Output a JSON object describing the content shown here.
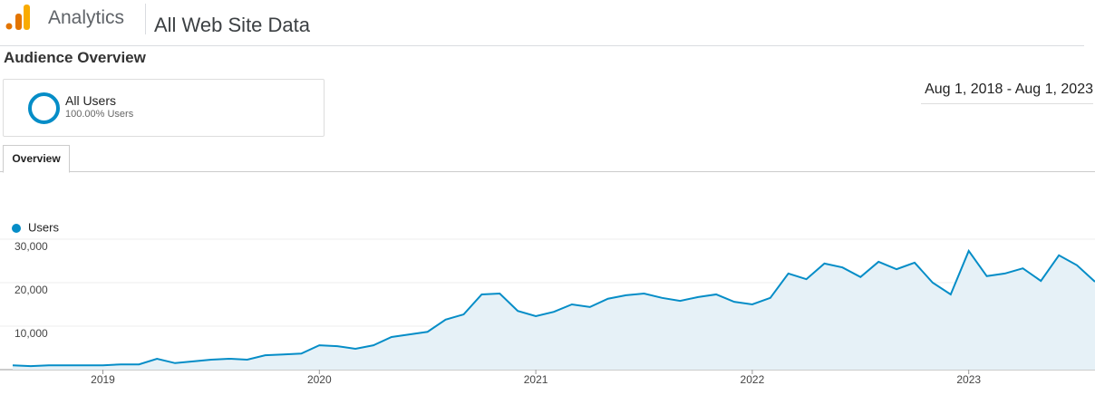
{
  "header": {
    "product": "Analytics",
    "view": "All Web Site Data"
  },
  "page_title": "Audience Overview",
  "segment": {
    "name": "All Users",
    "detail": "100.00% Users"
  },
  "date_range": "Aug 1, 2018 - Aug 1, 2023",
  "tabs": [
    "Overview"
  ],
  "chart_data": {
    "type": "line",
    "categories": [
      null,
      null,
      null,
      null,
      null,
      "2019",
      null,
      null,
      null,
      null,
      null,
      null,
      null,
      null,
      null,
      null,
      null,
      "2020",
      null,
      null,
      null,
      null,
      null,
      null,
      null,
      null,
      null,
      null,
      null,
      "2021",
      null,
      null,
      null,
      null,
      null,
      null,
      null,
      null,
      null,
      null,
      null,
      "2022",
      null,
      null,
      null,
      null,
      null,
      null,
      null,
      null,
      null,
      null,
      null,
      "2023",
      null,
      null,
      null,
      null,
      null,
      null,
      null
    ],
    "series": [
      {
        "name": "Users",
        "color": "#058dc7",
        "values": [
          1000,
          800,
          1000,
          1000,
          1000,
          1000,
          1200,
          1200,
          2500,
          1500,
          1900,
          2300,
          2500,
          2300,
          3300,
          3500,
          3700,
          5600,
          5400,
          4800,
          5600,
          7500,
          8100,
          8700,
          11500,
          12700,
          17300,
          17500,
          13500,
          12300,
          13300,
          15000,
          14400,
          16300,
          17100,
          17500,
          16500,
          15800,
          16700,
          17300,
          15600,
          15000,
          16500,
          22100,
          20800,
          24400,
          23500,
          21300,
          24800,
          23100,
          24600,
          20000,
          17300,
          27300,
          21500,
          22100,
          23300,
          20400,
          26300,
          24000,
          20200
        ]
      }
    ],
    "ylim": [
      0,
      30000
    ],
    "yticks": [
      {
        "value": 10000,
        "label": "10,000"
      },
      {
        "value": 20000,
        "label": "20,000"
      },
      {
        "value": 30000,
        "label": "30,000"
      }
    ],
    "grid": true
  }
}
